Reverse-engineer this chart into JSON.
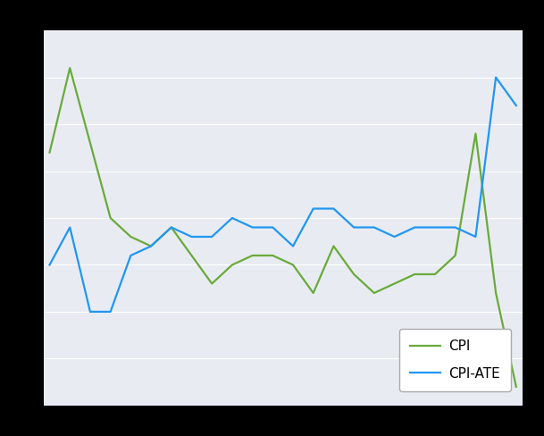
{
  "cpi": [
    3.2,
    4.1,
    3.3,
    2.5,
    2.3,
    2.2,
    2.4,
    2.1,
    1.8,
    2.0,
    2.1,
    2.1,
    2.0,
    1.7,
    2.2,
    1.9,
    1.7,
    1.8,
    1.9,
    1.9,
    2.1,
    3.4,
    1.7,
    0.7
  ],
  "cpi_ate": [
    2.0,
    2.4,
    1.5,
    1.5,
    2.1,
    2.2,
    2.4,
    2.3,
    2.3,
    2.5,
    2.4,
    2.4,
    2.2,
    2.6,
    2.6,
    2.4,
    2.4,
    2.3,
    2.4,
    2.4,
    2.4,
    2.3,
    4.0,
    3.7
  ],
  "cpi_color": "#6aaa3a",
  "cpi_ate_color": "#2196f3",
  "outer_bg": "#000000",
  "plot_bg_color": "#e8ecf2",
  "grid_color": "#ffffff",
  "legend_labels": [
    "CPI",
    "CPI-ATE"
  ],
  "ylim": [
    0.5,
    4.5
  ],
  "line_width": 1.6,
  "legend_fontsize": 11
}
